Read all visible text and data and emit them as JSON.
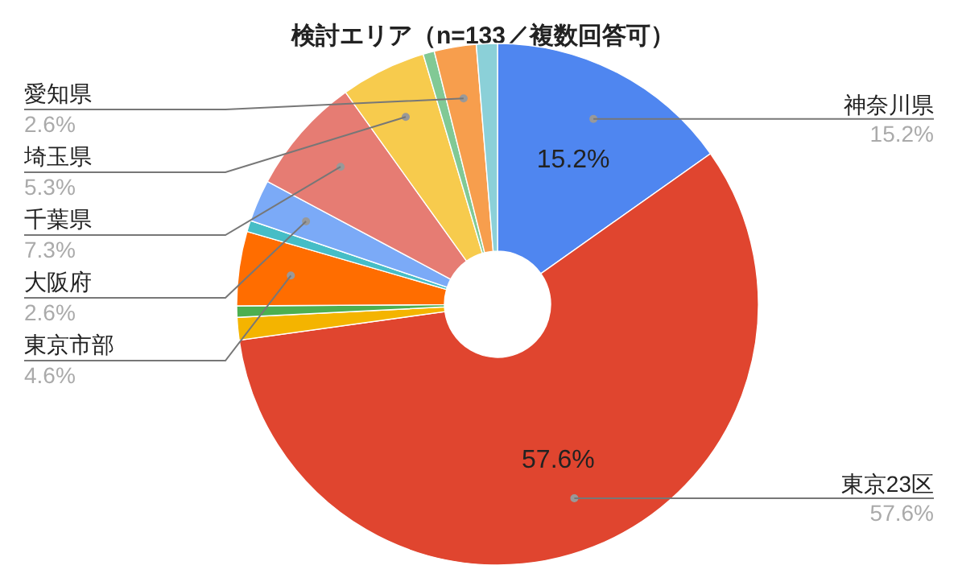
{
  "chart_data": {
    "type": "donut",
    "title": "検討エリア（n=133／複数回答可）",
    "categories": [
      "神奈川県",
      "東京23区",
      null,
      null,
      "東京市部",
      null,
      "大阪府",
      "千葉県",
      "埼玉県",
      null,
      "愛知県",
      null
    ],
    "values": [
      15.2,
      57.6,
      1.4,
      0.7,
      4.6,
      0.7,
      2.6,
      7.3,
      5.3,
      0.7,
      2.6,
      1.3
    ],
    "colors": [
      "#4f86f0",
      "#e0452f",
      "#f4b400",
      "#4caf50",
      "#ff6d00",
      "#46bdc6",
      "#7baaf7",
      "#e67c73",
      "#f7cb4d",
      "#81c995",
      "#f79e4d",
      "#8bd0d8"
    ],
    "value_labels": [
      "15.2%",
      "57.6%",
      null,
      null,
      "4.6%",
      null,
      "2.6%",
      "7.3%",
      "5.3%",
      null,
      "2.6%",
      null
    ],
    "legend": false
  }
}
